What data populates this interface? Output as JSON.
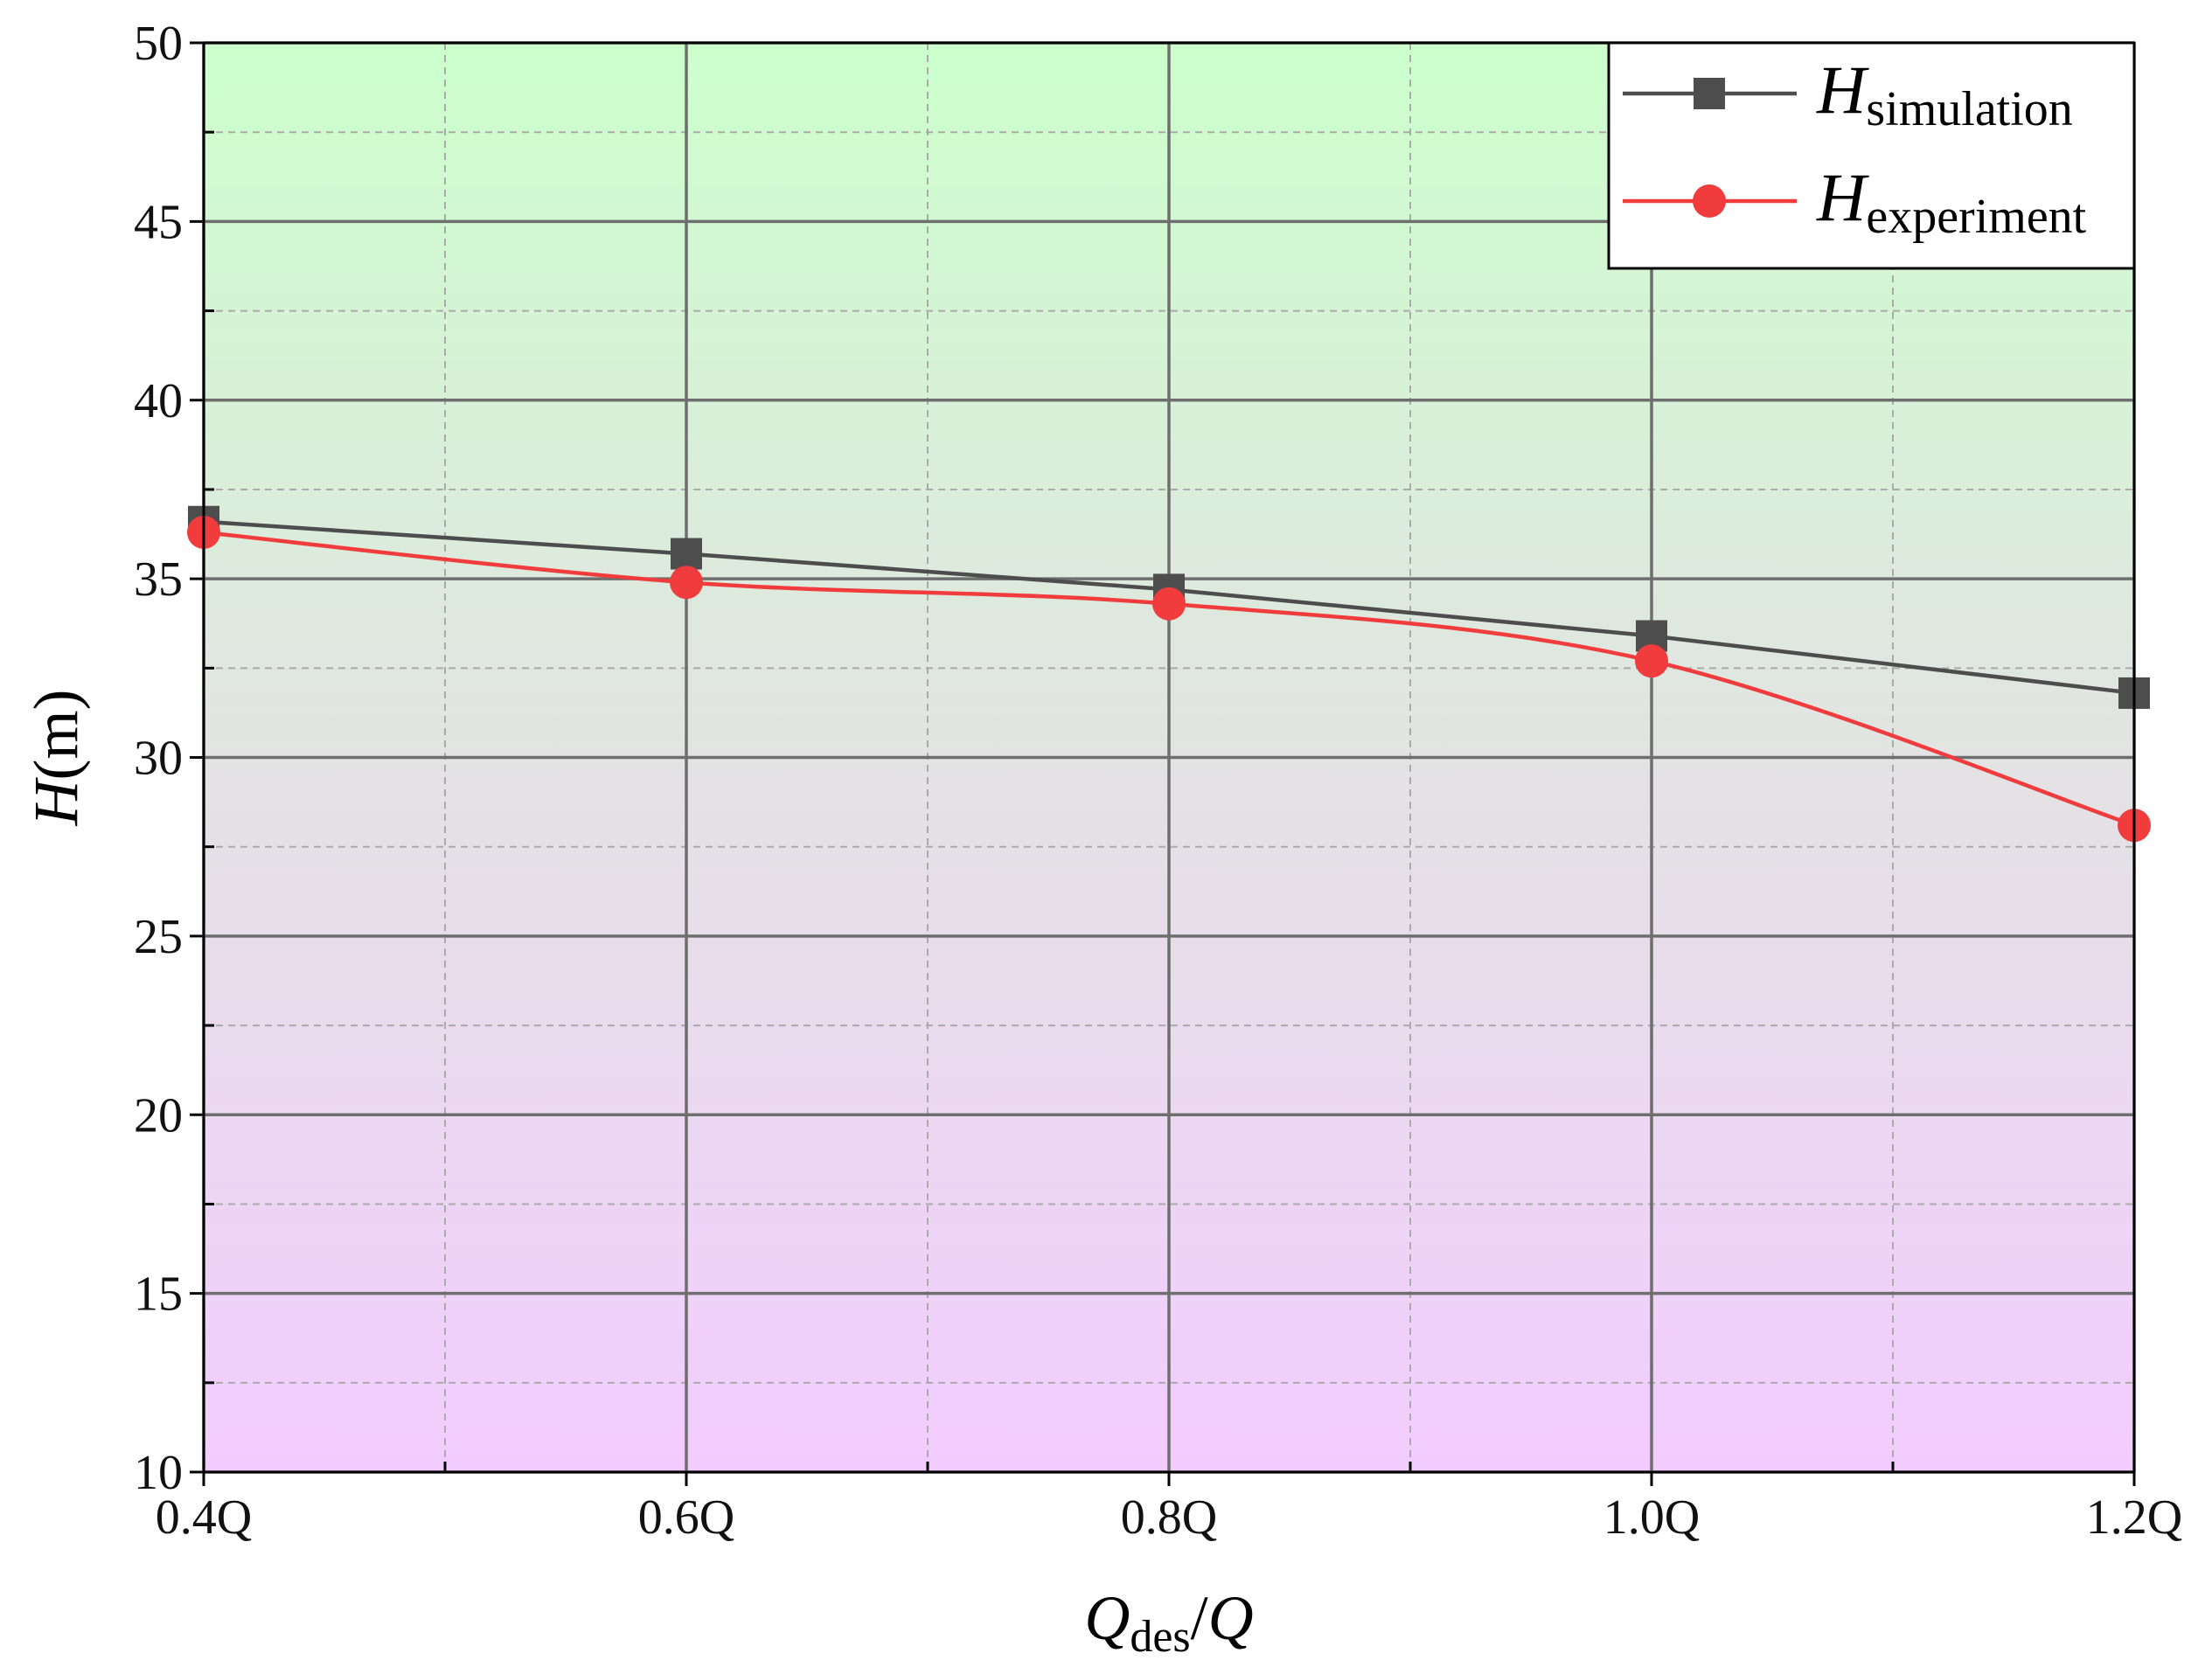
{
  "chart_data": {
    "type": "line",
    "x_label": [
      "Q",
      "des",
      "/",
      "Q"
    ],
    "y_label": [
      "H",
      "(m)"
    ],
    "x": [
      0.4,
      0.6,
      0.8,
      1.0,
      1.2
    ],
    "xlim": [
      0.4,
      1.2
    ],
    "xticks": [
      {
        "value": 0.4,
        "label": "0.4Q"
      },
      {
        "value": 0.6,
        "label": "0.6Q"
      },
      {
        "value": 0.8,
        "label": "0.8Q"
      },
      {
        "value": 1.0,
        "label": "1.0Q"
      },
      {
        "value": 1.2,
        "label": "1.2Q"
      }
    ],
    "ylim": [
      10,
      50
    ],
    "yticks": [
      10,
      15,
      20,
      25,
      30,
      35,
      40,
      45,
      50
    ],
    "grid": true,
    "legend": "upper right",
    "series": [
      {
        "name": "Hsimulation",
        "color": "#4d4d4d",
        "marker": "square",
        "values": [
          36.6,
          35.7,
          34.7,
          33.4,
          31.8
        ]
      },
      {
        "name": "Hexperiment",
        "color": "#f03c3c",
        "marker": "circle",
        "smooth": true,
        "values": [
          36.3,
          34.9,
          34.3,
          32.7,
          28.1
        ]
      }
    ]
  }
}
